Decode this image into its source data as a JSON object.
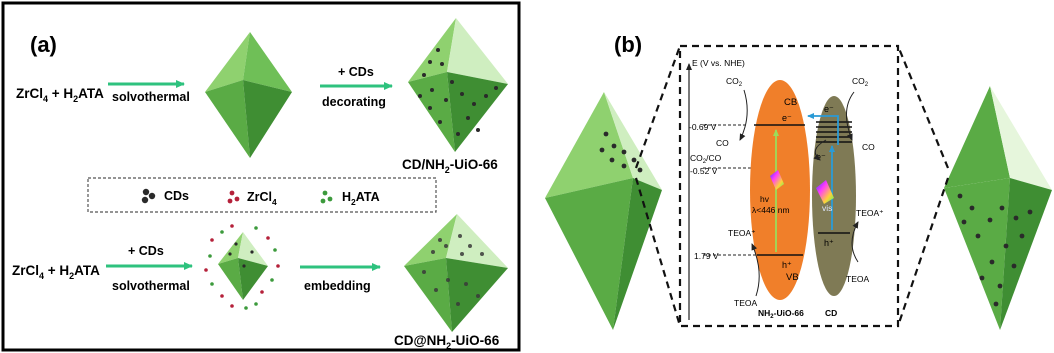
{
  "panel_a": {
    "label": "(a)",
    "route1": {
      "reactant": "ZrCl",
      "reactant_sub": "4",
      "plus": " + H",
      "plus_sub": "2",
      "ligand": "ATA",
      "step1": "solvothermal",
      "reagent": "+ CDs",
      "step2": "decorating",
      "product_pre": "CD/NH",
      "product_sub": "2",
      "product_post": "-UiO-66"
    },
    "legend": {
      "cds": "CDs",
      "zr_pre": "ZrCl",
      "zr_sub": "4",
      "h_pre": "H",
      "h_sub": "2",
      "h_post": "ATA"
    },
    "route2": {
      "reactant": "ZrCl",
      "reactant_sub": "4",
      "plus": " + H",
      "plus_sub": "2",
      "ligand": "ATA",
      "reagent": "+ CDs",
      "step1": "solvothermal",
      "step2": "embedding",
      "product_pre": "CD@NH",
      "product_sub": "2",
      "product_post": "-UiO-66"
    }
  },
  "panel_b": {
    "label": "(b)",
    "axis_label": "E (V vs. NHE)",
    "pot_cb": "-0.69 V",
    "pot_co2co_pre": "CO",
    "pot_co2co_sub": "2",
    "pot_co2co_post": "/CO",
    "pot_co2co_val": "-0.52 V",
    "pot_vb": "1.79 V",
    "co2_left_pre": "CO",
    "co2_left_sub": "2",
    "co_left": "CO",
    "co2_right_pre": "CO",
    "co2_right_sub": "2",
    "co_right": "CO",
    "cb": "CB",
    "vb": "VB",
    "electron": "e⁻",
    "hole": "h⁺",
    "hv": "hv",
    "lambda": "λ<446 nm",
    "vis": "vis",
    "teoa_plus": "TEOA⁺",
    "teoa": "TEOA",
    "mof_pre": "NH",
    "mof_sub": "2",
    "mof_post": "-UiO-66",
    "cd": "CD"
  },
  "colors": {
    "octa_light": "#8fd16f",
    "octa_mid": "#5fb04a",
    "octa_dark": "#3b8a30",
    "arrow": "#2ec27e",
    "mof_band": "#f07f2a",
    "cd_band": "#7f7a55",
    "blue_arrow": "#2a9bd6"
  }
}
